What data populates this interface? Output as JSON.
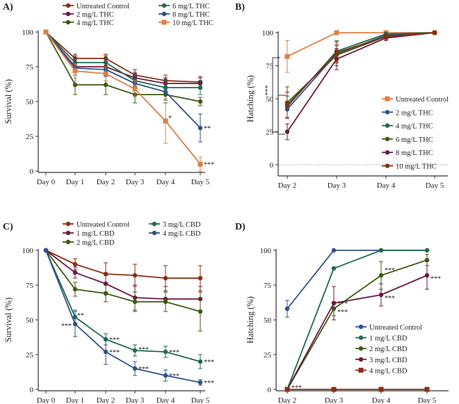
{
  "colors": {
    "untreated": "#8b2d14",
    "t2": "#6b1840",
    "t4": "#3f5a12",
    "t6": "#1f6a4f",
    "t8": "#2f5189",
    "t10": "#d98046",
    "c1": "#6b1840",
    "c2": "#3f5a12",
    "c3": "#1f6a4f",
    "c4": "#2f5189",
    "b_untreated": "#e07e45",
    "b_t2": "#2f5189",
    "b_t4": "#1f6a4f",
    "b_t6": "#3f5a12",
    "b_t8": "#6b1840",
    "b_t10": "#8b2d14",
    "d_untreated": "#2f5189",
    "d_c1": "#1f6a4f",
    "d_c2": "#3f5a12",
    "d_c3": "#6b1840",
    "d_c4": "#8b2d14",
    "axis": "#333333"
  },
  "chart_data": [
    {
      "panel": "A)",
      "type": "line",
      "ylabel": "Survival (%)",
      "xlabel": "",
      "ylim": [
        0,
        100
      ],
      "yticks": [
        "0",
        "25",
        "50",
        "75",
        "100"
      ],
      "categories": [
        "Day 0",
        "Day 1",
        "Day 2",
        "Day 3",
        "Day 4",
        "Day 5"
      ],
      "series": [
        {
          "name": "Untreated Control",
          "color_key": "untreated",
          "values": [
            100,
            81,
            81,
            69,
            65,
            64
          ],
          "errors": [
            0,
            3,
            3,
            4,
            4,
            4
          ]
        },
        {
          "name": "2 mg/L THC",
          "color_key": "t2",
          "values": [
            100,
            75,
            75,
            67,
            63,
            63
          ],
          "errors": [
            0,
            4,
            4,
            4,
            4,
            4
          ]
        },
        {
          "name": "4 mg/L THC",
          "color_key": "t4",
          "values": [
            100,
            62,
            62,
            55,
            55,
            50
          ],
          "errors": [
            0,
            7,
            7,
            6,
            6,
            3
          ]
        },
        {
          "name": "6 mg/L THC",
          "color_key": "t6",
          "values": [
            100,
            78,
            78,
            65,
            60,
            60
          ],
          "errors": [
            0,
            5,
            5,
            5,
            5,
            5
          ]
        },
        {
          "name": "8 mg/L THC",
          "color_key": "t8",
          "values": [
            100,
            74,
            73,
            63,
            57,
            31
          ],
          "errors": [
            0,
            5,
            5,
            5,
            6,
            10
          ]
        },
        {
          "name": "10 mg/L THC",
          "color_key": "t10",
          "values": [
            100,
            72,
            70,
            59,
            36,
            5
          ],
          "errors": [
            0,
            5,
            5,
            6,
            16,
            5
          ]
        }
      ],
      "annotations": [
        {
          "text": "*",
          "category": "Day 4",
          "value": 36
        },
        {
          "text": "**",
          "category": "Day 5",
          "value": 31
        },
        {
          "text": "***",
          "category": "Day 5",
          "value": 5
        }
      ],
      "legend": [
        "Untreated Control",
        "2 mg/L THC",
        "4 mg/L THC",
        "6 mg/L THC",
        "8 mg/L THC",
        "10 mg/L THC"
      ]
    },
    {
      "panel": "B)",
      "type": "line",
      "ylabel": "Hatching (%)",
      "xlabel": "",
      "ylim": [
        0,
        100
      ],
      "yticks": [
        "0",
        "25",
        "50",
        "75",
        "100"
      ],
      "categories": [
        "Day 2",
        "Day 3",
        "Day 4",
        "Day 5"
      ],
      "series": [
        {
          "name": "Untreated Control",
          "color_key": "b_untreated",
          "values": [
            82,
            100,
            100,
            100
          ],
          "errors": [
            12,
            0,
            0,
            0
          ]
        },
        {
          "name": "2 mg/L THC",
          "color_key": "b_t2",
          "values": [
            42,
            84,
            98,
            100
          ],
          "errors": [
            6,
            6,
            2,
            0
          ]
        },
        {
          "name": "4 mg/L THC",
          "color_key": "b_t4",
          "values": [
            44,
            86,
            99,
            100
          ],
          "errors": [
            8,
            8,
            1,
            0
          ]
        },
        {
          "name": "6 mg/L THC",
          "color_key": "b_t6",
          "values": [
            47,
            83,
            97,
            100
          ],
          "errors": [
            12,
            8,
            2,
            0
          ]
        },
        {
          "name": "8 mg/L THC",
          "color_key": "b_t8",
          "values": [
            25,
            80,
            96,
            100
          ],
          "errors": [
            6,
            8,
            2,
            0
          ]
        },
        {
          "name": "10 mg/L THC",
          "color_key": "b_t10",
          "values": [
            45,
            85,
            97,
            100
          ],
          "errors": [
            10,
            8,
            2,
            0
          ]
        }
      ],
      "annotations": [
        {
          "text": "***",
          "category": "Day 2",
          "value": 65
        }
      ],
      "legend": [
        "Untreated Control",
        "2 mg/L THC",
        "4 mg/L THC",
        "6 mg/L THC",
        "8 mg/L THC",
        "10 mg/L THC"
      ]
    },
    {
      "panel": "C)",
      "type": "line",
      "ylabel": "Survival (%)",
      "xlabel": "",
      "ylim": [
        0,
        100
      ],
      "yticks": [
        "0",
        "25",
        "50",
        "75",
        "100"
      ],
      "categories": [
        "Day 0",
        "Day 1",
        "Day 2",
        "Day 3",
        "Day 4",
        "Day 5"
      ],
      "series": [
        {
          "name": "Untreated Control",
          "color_key": "untreated",
          "values": [
            100,
            90,
            83,
            82,
            80,
            80
          ],
          "errors": [
            0,
            4,
            8,
            8,
            9,
            9
          ]
        },
        {
          "name": "1 mg/L CBD",
          "color_key": "c1",
          "values": [
            100,
            84,
            76,
            66,
            65,
            65
          ],
          "errors": [
            0,
            4,
            6,
            9,
            9,
            9
          ]
        },
        {
          "name": "2 mg/L CBD",
          "color_key": "c2",
          "values": [
            100,
            72,
            69,
            63,
            63,
            56
          ],
          "errors": [
            0,
            5,
            6,
            7,
            7,
            14
          ]
        },
        {
          "name": "3 mg/L CBD",
          "color_key": "c3",
          "values": [
            100,
            52,
            36,
            28,
            27,
            20
          ],
          "errors": [
            0,
            5,
            4,
            4,
            4,
            5
          ]
        },
        {
          "name": "4 mg/L CBD",
          "color_key": "c4",
          "values": [
            100,
            47,
            27,
            15,
            10,
            5
          ],
          "errors": [
            0,
            9,
            9,
            5,
            4,
            2
          ]
        }
      ],
      "annotations": [
        {
          "text": "**",
          "category": "Day 1",
          "value": 53
        },
        {
          "text": "***",
          "category": "Day 1",
          "value": 46
        },
        {
          "text": "***",
          "category": "Day 2",
          "value": 36
        },
        {
          "text": "***",
          "category": "Day 2",
          "value": 27
        },
        {
          "text": "***",
          "category": "Day 3",
          "value": 29
        },
        {
          "text": "***",
          "category": "Day 3",
          "value": 15
        },
        {
          "text": "***",
          "category": "Day 4",
          "value": 27
        },
        {
          "text": "***",
          "category": "Day 4",
          "value": 10
        },
        {
          "text": "***",
          "category": "Day 5",
          "value": 20
        },
        {
          "text": "***",
          "category": "Day 5",
          "value": 5
        }
      ],
      "legend": [
        "Untreated Control",
        "1 mg/L CBD",
        "2 mg/L CBD",
        "3 mg/L CBD",
        "4 mg/L CBD"
      ]
    },
    {
      "panel": "D)",
      "type": "line",
      "ylabel": "Hatching (%)",
      "xlabel": "",
      "ylim": [
        0,
        100
      ],
      "yticks": [
        "0",
        "25",
        "50",
        "75",
        "100"
      ],
      "categories": [
        "Day 2",
        "Day 3",
        "Day 4",
        "Day 5"
      ],
      "series": [
        {
          "name": "Untreated Control",
          "color_key": "d_untreated",
          "values": [
            58,
            100,
            100,
            100
          ],
          "errors": [
            6,
            0,
            0,
            0
          ]
        },
        {
          "name": "1 mg/L CBD",
          "color_key": "d_c1",
          "values": [
            0,
            87,
            100,
            100
          ],
          "errors": [
            0,
            0,
            0,
            0
          ]
        },
        {
          "name": "2 mg/L CBD",
          "color_key": "d_c2",
          "values": [
            0,
            58,
            82,
            93
          ],
          "errors": [
            0,
            5,
            10,
            4
          ]
        },
        {
          "name": "3 mg/L CBD",
          "color_key": "d_c3",
          "values": [
            0,
            62,
            68,
            82
          ],
          "errors": [
            0,
            12,
            8,
            10
          ]
        },
        {
          "name": "4 mg/L CBD",
          "color_key": "d_c4",
          "values": [
            0,
            0,
            0,
            0
          ],
          "errors": [
            0,
            0,
            0,
            0
          ]
        }
      ],
      "annotations": [
        {
          "text": "***",
          "category": "Day 2",
          "value": 0
        },
        {
          "text": "***",
          "category": "Day 3",
          "value": 62
        },
        {
          "text": "***",
          "category": "Day 3",
          "value": 56
        },
        {
          "text": "***",
          "category": "Day 4",
          "value": 86
        },
        {
          "text": "***",
          "category": "Day 4",
          "value": 66
        },
        {
          "text": "***",
          "category": "Day 5",
          "value": 80
        }
      ],
      "legend": [
        "Untreated Control",
        "1 mg/L CBD",
        "2 mg/L CBD",
        "3 mg/L CBD",
        "4 mg/L CBD"
      ]
    }
  ]
}
